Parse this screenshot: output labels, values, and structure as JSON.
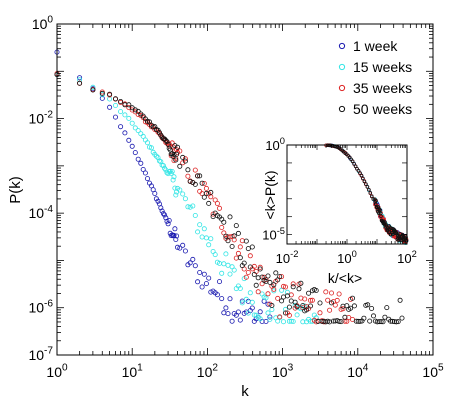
{
  "chart_data": [
    {
      "type": "scatter",
      "xlabel": "k",
      "ylabel": "P(k)",
      "xscale": "log",
      "yscale": "log",
      "xlim": [
        1,
        100000
      ],
      "ylim": [
        1e-07,
        1
      ],
      "x_ticks": [
        {
          "value": 1,
          "base": "10",
          "exp": "0"
        },
        {
          "value": 10,
          "base": "10",
          "exp": "1"
        },
        {
          "value": 100,
          "base": "10",
          "exp": "2"
        },
        {
          "value": 1000,
          "base": "10",
          "exp": "3"
        },
        {
          "value": 10000,
          "base": "10",
          "exp": "4"
        },
        {
          "value": 100000,
          "base": "10",
          "exp": "5"
        }
      ],
      "y_ticks": [
        {
          "value": 1,
          "base": "10",
          "exp": "0"
        },
        {
          "value": 0.01,
          "base": "10",
          "exp": "-2"
        },
        {
          "value": 0.0001,
          "base": "10",
          "exp": "-4"
        },
        {
          "value": 1e-06,
          "base": "10",
          "exp": "-6"
        },
        {
          "value": 1e-07,
          "base": "10",
          "exp": "-7"
        }
      ],
      "legend_position": "top-right",
      "series": [
        {
          "name": "1 week",
          "color": "#1a1ab0",
          "kmax": 700,
          "points": [
            [
              1,
              0.25
            ],
            [
              1.5,
              0.12
            ],
            [
              2,
              0.075
            ],
            [
              3,
              0.042
            ],
            [
              5,
              0.017
            ],
            [
              7,
              0.007
            ],
            [
              10,
              0.0025
            ],
            [
              15,
              0.0007
            ],
            [
              20,
              0.00025
            ],
            [
              30,
              6e-05
            ],
            [
              50,
              1.2e-05
            ],
            [
              70,
              6e-06
            ],
            [
              100,
              3.5e-06
            ],
            [
              150,
              1.8e-06
            ],
            [
              200,
              1.2e-06
            ],
            [
              300,
              8e-07
            ],
            [
              500,
              6e-07
            ],
            [
              700,
              5e-07
            ]
          ]
        },
        {
          "name": "15 weeks",
          "color": "#33e5e5",
          "kmax": 3000,
          "points": [
            [
              1,
              0.09
            ],
            [
              2,
              0.065
            ],
            [
              3,
              0.045
            ],
            [
              5,
              0.025
            ],
            [
              10,
              0.008
            ],
            [
              15,
              0.0035
            ],
            [
              20,
              0.0018
            ],
            [
              30,
              0.0007
            ],
            [
              50,
              0.00018
            ],
            [
              70,
              7e-05
            ],
            [
              100,
              3e-05
            ],
            [
              150,
              1e-05
            ],
            [
              200,
              5e-06
            ],
            [
              300,
              2.2e-06
            ],
            [
              500,
              1.2e-06
            ],
            [
              1000,
              8e-07
            ],
            [
              2000,
              6e-07
            ],
            [
              3000,
              5e-07
            ]
          ]
        },
        {
          "name": "35 weeks",
          "color": "#dd2222",
          "kmax": 9000,
          "points": [
            [
              1,
              0.09
            ],
            [
              2,
              0.055
            ],
            [
              3,
              0.042
            ],
            [
              5,
              0.03
            ],
            [
              10,
              0.016
            ],
            [
              15,
              0.009
            ],
            [
              20,
              0.006
            ],
            [
              30,
              0.0028
            ],
            [
              50,
              0.001
            ],
            [
              70,
              0.0005
            ],
            [
              100,
              0.00022
            ],
            [
              150,
              8e-05
            ],
            [
              200,
              4e-05
            ],
            [
              300,
              1.2e-05
            ],
            [
              500,
              4e-06
            ],
            [
              1000,
              1.5e-06
            ],
            [
              3000,
              8e-07
            ],
            [
              9000,
              6e-07
            ]
          ]
        },
        {
          "name": "50 weeks",
          "color": "#111111",
          "kmax": 40000,
          "points": [
            [
              1,
              0.09
            ],
            [
              2,
              0.055
            ],
            [
              3,
              0.042
            ],
            [
              5,
              0.031
            ],
            [
              10,
              0.017
            ],
            [
              15,
              0.01
            ],
            [
              20,
              0.0065
            ],
            [
              30,
              0.003
            ],
            [
              50,
              0.0011
            ],
            [
              70,
              0.00055
            ],
            [
              100,
              0.00025
            ],
            [
              150,
              9e-05
            ],
            [
              200,
              4.5e-05
            ],
            [
              300,
              1.5e-05
            ],
            [
              500,
              5e-06
            ],
            [
              1000,
              1.8e-06
            ],
            [
              3000,
              8e-07
            ],
            [
              10000,
              6e-07
            ],
            [
              40000,
              5e-07
            ]
          ]
        }
      ]
    },
    {
      "type": "scatter",
      "inset": true,
      "xlabel": "k/<k>",
      "ylabel": "<k>P(k)",
      "xscale": "log",
      "yscale": "log",
      "xlim": [
        0.01,
        100
      ],
      "ylim": [
        3e-06,
        1
      ],
      "x_ticks": [
        {
          "value": 0.01,
          "base": "10",
          "exp": "-2"
        },
        {
          "value": 1,
          "base": "10",
          "exp": "0"
        },
        {
          "value": 100,
          "base": "10",
          "exp": "2"
        }
      ],
      "y_ticks": [
        {
          "value": 1,
          "base": "10",
          "exp": "0"
        },
        {
          "value": 1e-05,
          "base": "10",
          "exp": "-5"
        }
      ],
      "collapse_points": [
        [
          0.2,
          1.0
        ],
        [
          0.3,
          0.95
        ],
        [
          0.5,
          0.75
        ],
        [
          0.7,
          0.5
        ],
        [
          1,
          0.3
        ],
        [
          1.5,
          0.13
        ],
        [
          2,
          0.06
        ],
        [
          3,
          0.02
        ],
        [
          5,
          0.004
        ],
        [
          7,
          0.0012
        ],
        [
          10,
          0.0004
        ],
        [
          15,
          8e-05
        ],
        [
          20,
          3e-05
        ],
        [
          30,
          1.5e-05
        ],
        [
          50,
          8e-06
        ],
        [
          100,
          5e-06
        ]
      ]
    }
  ]
}
